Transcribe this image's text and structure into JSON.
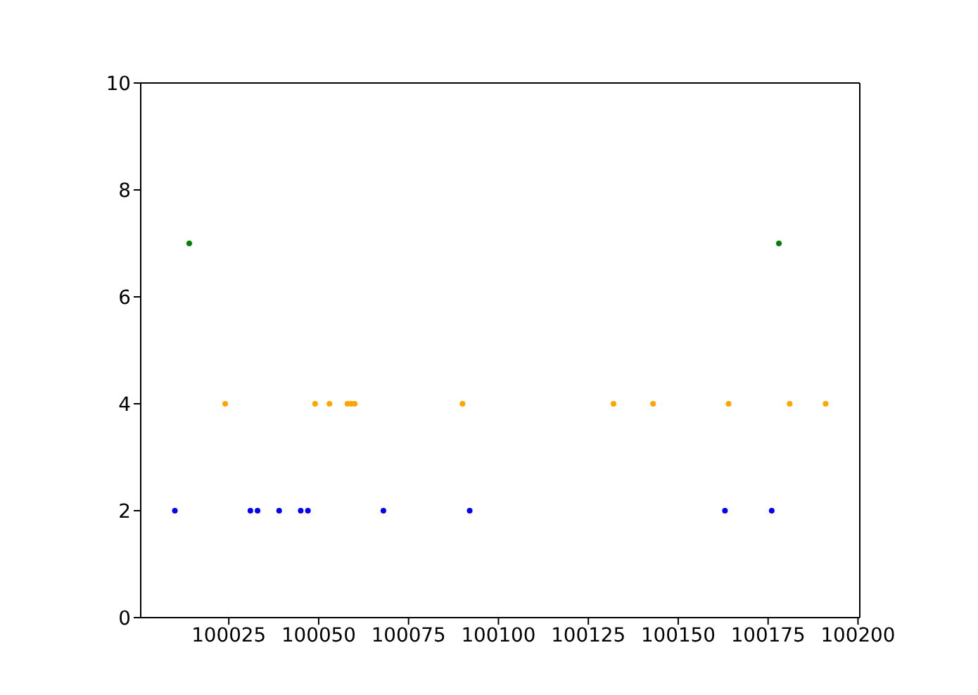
{
  "chart_data": {
    "type": "scatter",
    "xlim": [
      100000.5,
      100200.5
    ],
    "xticks": [
      100025,
      100050,
      100075,
      100100,
      100125,
      100150,
      100175,
      100200
    ],
    "ylim": [
      0,
      10
    ],
    "yticks": [
      0,
      2,
      4,
      6,
      8,
      10
    ],
    "marker": "circle",
    "series": [
      {
        "color": "#0000ff",
        "x": [
          100010,
          100031,
          100033,
          100039,
          100045,
          100047,
          100068,
          100092,
          100163,
          100176
        ],
        "values": [
          2,
          2,
          2,
          2,
          2,
          2,
          2,
          2,
          2,
          2
        ]
      },
      {
        "color": "#ffa500",
        "x": [
          100024,
          100049,
          100053,
          100058,
          100059,
          100060,
          100090,
          100132,
          100143,
          100164,
          100181,
          100191
        ],
        "values": [
          4,
          4,
          4,
          4,
          4,
          4,
          4,
          4,
          4,
          4,
          4,
          4
        ]
      },
      {
        "color": "#008000",
        "x": [
          100014,
          100178
        ],
        "values": [
          7,
          7
        ]
      }
    ]
  }
}
